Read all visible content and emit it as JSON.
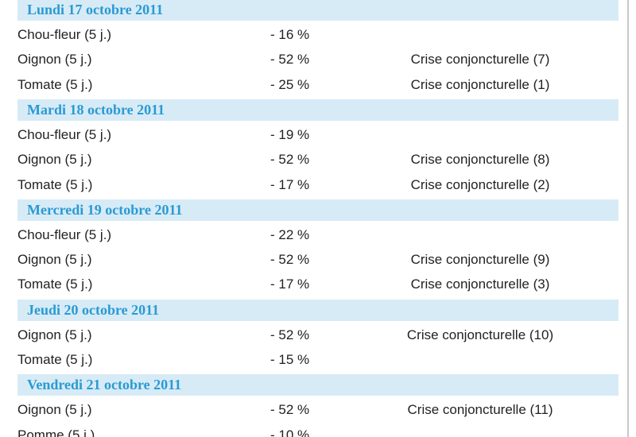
{
  "sections": [
    {
      "date": "Lundi 17 octobre 2011",
      "rows": [
        {
          "product": "Chou-fleur (5 j.)",
          "change": "- 16 %"
        },
        {
          "product": "Oignon (5 j.)",
          "change": "- 52 %",
          "note": "Crise conjoncturelle (7)"
        },
        {
          "product": "Tomate (5 j.)",
          "change": "- 25 %",
          "note": "Crise conjoncturelle (1)"
        }
      ]
    },
    {
      "date": "Mardi 18 octobre 2011",
      "rows": [
        {
          "product": "Chou-fleur (5 j.)",
          "change": "- 19 %"
        },
        {
          "product": "Oignon (5 j.)",
          "change": "- 52 %",
          "note": "Crise conjoncturelle (8)"
        },
        {
          "product": "Tomate (5 j.)",
          "change": "- 17 %",
          "note": "Crise conjoncturelle (2)"
        }
      ]
    },
    {
      "date": "Mercredi 19 octobre 2011",
      "rows": [
        {
          "product": "Chou-fleur (5 j.)",
          "change": "- 22 %"
        },
        {
          "product": "Oignon (5 j.)",
          "change": "- 52 %",
          "note": "Crise conjoncturelle (9)"
        },
        {
          "product": "Tomate (5 j.)",
          "change": "- 17 %",
          "note": "Crise conjoncturelle (3)"
        }
      ]
    },
    {
      "date": "Jeudi 20 octobre 2011",
      "rows": [
        {
          "product": "Oignon (5 j.)",
          "change": "- 52 %",
          "note": "Crise conjoncturelle (10)"
        },
        {
          "product": "Tomate (5 j.)",
          "change": "- 15 %"
        }
      ]
    },
    {
      "date": "Vendredi 21 octobre 2011",
      "rows": [
        {
          "product": "Oignon (5 j.)",
          "change": "- 52 %",
          "note": "Crise conjoncturelle (11)"
        },
        {
          "product": "Pomme (5 j.)",
          "change": "- 10 %"
        }
      ]
    }
  ]
}
